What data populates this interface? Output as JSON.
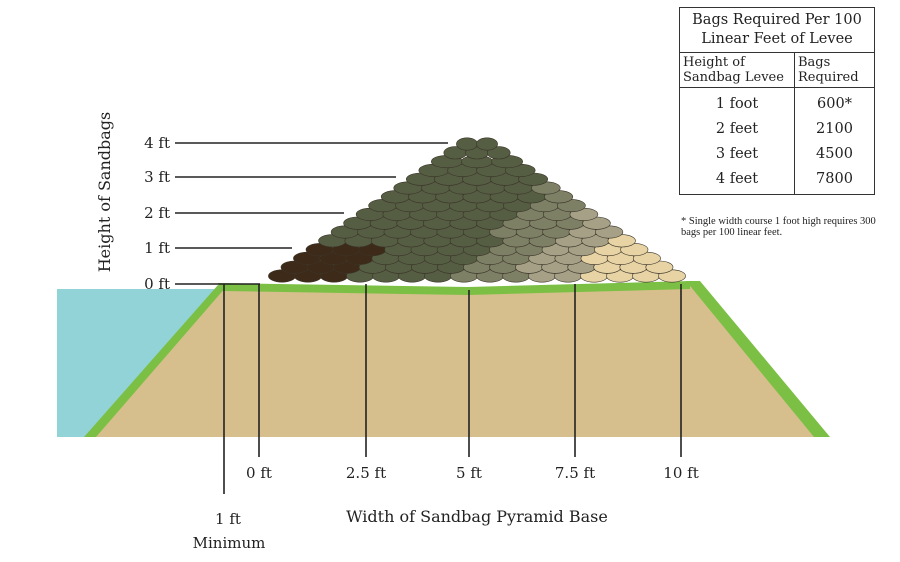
{
  "diagram": {
    "y_axis_label": "Height of Sandbags",
    "x_axis_label": "Width of Sandbag Pyramid Base",
    "height_levels": [
      "0 ft",
      "1 ft",
      "2 ft",
      "3 ft",
      "4 ft"
    ],
    "width_marks": [
      "0 ft",
      "2.5 ft",
      "5 ft",
      "7.5 ft",
      "10 ft"
    ],
    "minimum_label_line1": "1 ft",
    "minimum_label_line2": "Minimum",
    "colors": {
      "water": "#92d3d8",
      "soil": "#d6bf8d",
      "grass": "#7cbf45",
      "bag_brown": "#3e2a18",
      "bag_dark_green": "#555e43",
      "bag_gray_green": "#7e8066",
      "bag_gray": "#a5a086",
      "bag_tan": "#e8d3a5"
    }
  },
  "table": {
    "title": "Bags Required Per 100 Linear Feet of Levee",
    "col1_header": "Height of Sandbag Levee",
    "col2_header": "Bags Required",
    "rows": [
      {
        "height": "1 foot",
        "bags": "600*"
      },
      {
        "height": "2 feet",
        "bags": "2100"
      },
      {
        "height": "3 feet",
        "bags": "4500"
      },
      {
        "height": "4 feet",
        "bags": "7800"
      }
    ],
    "footnote": "* Single width course 1 foot high requires 300 bags per 100 linear feet."
  }
}
